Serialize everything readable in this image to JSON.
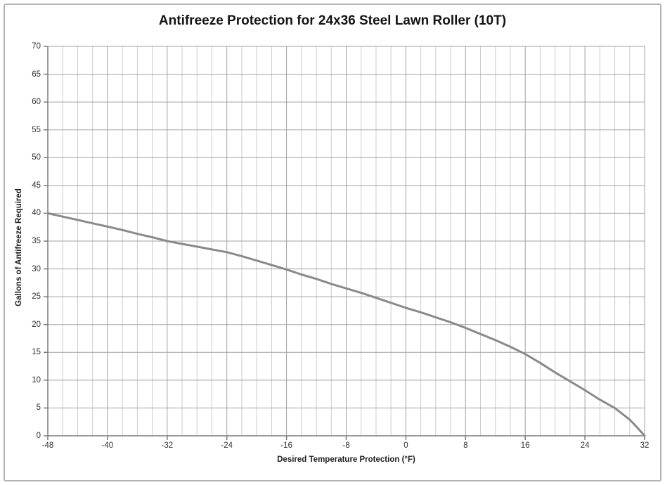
{
  "page": {
    "background": "#ffffff",
    "border_color": "#b5b5b5"
  },
  "colors": {
    "grid_minor": "#cccccc",
    "grid_major": "#a2a2a2",
    "axis_line": "#7a7a7a",
    "curve": "#8a8a8a",
    "title_text": "#141414",
    "tick_text": "#333333"
  },
  "chart_data": {
    "type": "line",
    "title": "Antifreeze Protection for 24x36 Steel Lawn Roller (10T)",
    "xlabel": "Desired Temperature Protection (°F)",
    "ylabel": "Gallons of Antifreeze Required",
    "xlim": [
      -48,
      32
    ],
    "ylim": [
      0,
      70
    ],
    "x_ticks": [
      -48,
      -40,
      -32,
      -24,
      -16,
      -8,
      0,
      8,
      16,
      24,
      32
    ],
    "y_ticks": [
      0,
      5,
      10,
      15,
      20,
      25,
      30,
      35,
      40,
      45,
      50,
      55,
      60,
      65,
      70
    ],
    "x_minor_step": 2,
    "grid": "horizontal-major, vertical-major-and-minor",
    "legend": "none",
    "series": [
      {
        "points": [
          [
            -48,
            40.0
          ],
          [
            -46,
            39.4
          ],
          [
            -44,
            38.8
          ],
          [
            -42,
            38.2
          ],
          [
            -40,
            37.6
          ],
          [
            -38,
            37.0
          ],
          [
            -36,
            36.3
          ],
          [
            -34,
            35.7
          ],
          [
            -32,
            35.0
          ],
          [
            -30,
            34.5
          ],
          [
            -28,
            34.0
          ],
          [
            -26,
            33.5
          ],
          [
            -24,
            33.0
          ],
          [
            -22,
            32.3
          ],
          [
            -20,
            31.5
          ],
          [
            -18,
            30.7
          ],
          [
            -16,
            29.9
          ],
          [
            -14,
            29.0
          ],
          [
            -12,
            28.2
          ],
          [
            -10,
            27.3
          ],
          [
            -8,
            26.5
          ],
          [
            -6,
            25.7
          ],
          [
            -4,
            24.8
          ],
          [
            -2,
            23.9
          ],
          [
            0,
            23.0
          ],
          [
            2,
            22.2
          ],
          [
            4,
            21.3
          ],
          [
            6,
            20.4
          ],
          [
            8,
            19.4
          ],
          [
            10,
            18.3
          ],
          [
            12,
            17.2
          ],
          [
            14,
            16.0
          ],
          [
            16,
            14.7
          ],
          [
            18,
            13.1
          ],
          [
            20,
            11.4
          ],
          [
            22,
            9.8
          ],
          [
            24,
            8.2
          ],
          [
            26,
            6.5
          ],
          [
            28,
            5.0
          ],
          [
            30,
            2.9
          ],
          [
            31,
            1.5
          ],
          [
            32,
            0.0
          ]
        ]
      }
    ]
  }
}
